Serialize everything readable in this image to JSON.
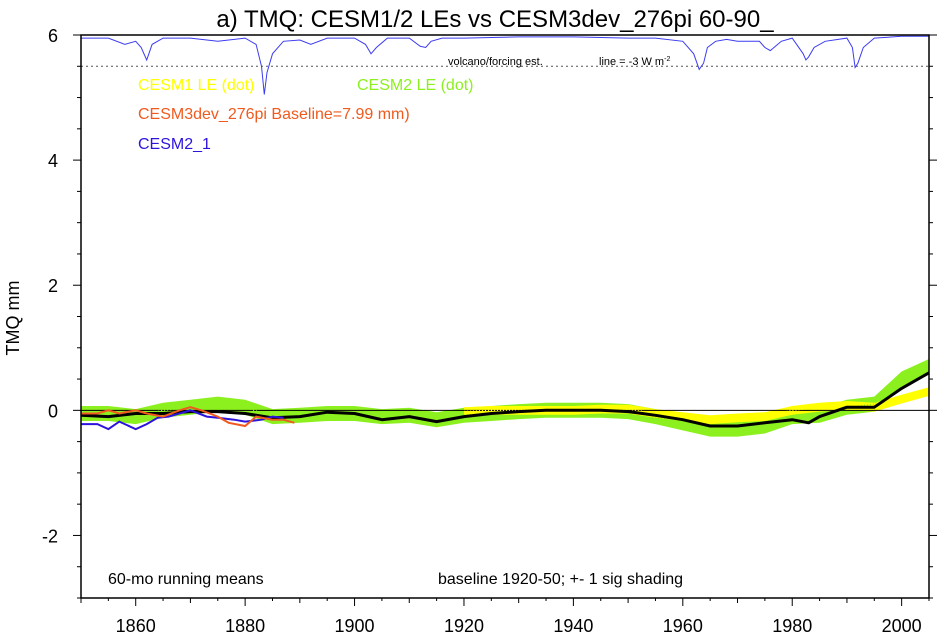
{
  "chart_data": {
    "type": "line",
    "title": "a) TMQ: CESM1/2 LEs vs CESM3dev_276pi 60-90_",
    "ylabel": "TMQ mm",
    "xlim": [
      1850,
      2005
    ],
    "ylim": [
      -3,
      6
    ],
    "x_ticks": [
      1860,
      1880,
      1900,
      1920,
      1940,
      1960,
      1980,
      2000
    ],
    "y_ticks": [
      -2,
      0,
      2,
      4,
      6
    ],
    "grid": false,
    "legend": {
      "cesm1_le": "CESM1 LE (dot)",
      "cesm2_le": "CESM2 LE (dot)",
      "cesm3": "CESM3dev_276pi Baseline=7.99 mm)",
      "cesm2_1": "CESM2_1"
    },
    "annotations": {
      "volcano": "volcano/forcing est.",
      "line_label": "line = -3 W m",
      "line_sup": "-2",
      "running_means": "60-mo running means",
      "baseline_note": "baseline 1920-50; +- 1 sig shading"
    },
    "colors": {
      "cesm1": "#ffff00",
      "cesm2": "#8cf01e",
      "cesm3": "#f05a1e",
      "cesm2_1": "#2d14dc",
      "mean": "#000000",
      "volcano": "#3c3cf0"
    },
    "volcano_reference_y": 5.5,
    "volcano_forcing": {
      "name": "volcano/forcing est.",
      "x": [
        1850,
        1855,
        1858,
        1860,
        1861,
        1862,
        1863,
        1865,
        1868,
        1870,
        1875,
        1880,
        1882,
        1883,
        1883.5,
        1884,
        1885,
        1887,
        1890,
        1892,
        1895,
        1900,
        1902,
        1903,
        1904,
        1906,
        1910,
        1912,
        1913,
        1914,
        1916,
        1920,
        1930,
        1940,
        1950,
        1955,
        1960,
        1962,
        1963,
        1963.8,
        1964.5,
        1966,
        1968,
        1970,
        1974,
        1975,
        1976,
        1978,
        1980,
        1982,
        1982.5,
        1983,
        1984,
        1986,
        1990,
        1991,
        1991.5,
        1992,
        1993,
        1995,
        2000,
        2005
      ],
      "y": [
        5.95,
        5.95,
        5.85,
        5.9,
        5.8,
        5.6,
        5.85,
        5.95,
        5.95,
        5.95,
        5.9,
        5.95,
        5.85,
        5.5,
        5.05,
        5.4,
        5.7,
        5.9,
        5.92,
        5.85,
        5.95,
        5.95,
        5.85,
        5.7,
        5.8,
        5.95,
        5.95,
        5.82,
        5.8,
        5.9,
        5.95,
        5.95,
        5.97,
        5.97,
        5.95,
        5.95,
        5.9,
        5.7,
        5.45,
        5.55,
        5.8,
        5.9,
        5.93,
        5.9,
        5.9,
        5.8,
        5.75,
        5.9,
        5.95,
        5.7,
        5.6,
        5.65,
        5.8,
        5.9,
        5.95,
        5.8,
        5.48,
        5.55,
        5.8,
        5.95,
        5.98,
        5.98
      ]
    },
    "series": [
      {
        "name": "CESM2 LE (dot)",
        "x": [
          1850,
          1855,
          1860,
          1865,
          1870,
          1875,
          1880,
          1885,
          1890,
          1895,
          1900,
          1905,
          1910,
          1915,
          1920,
          1925,
          1930,
          1935,
          1940,
          1945,
          1950,
          1955,
          1960,
          1965,
          1970,
          1975,
          1980,
          1985,
          1990,
          1995,
          2000,
          2005
        ],
        "y": [
          -0.05,
          -0.05,
          -0.1,
          0.0,
          0.05,
          0.1,
          0.05,
          -0.1,
          -0.08,
          -0.05,
          -0.05,
          -0.1,
          -0.08,
          -0.15,
          -0.08,
          -0.05,
          -0.02,
          0.0,
          0.0,
          0.0,
          -0.02,
          -0.1,
          -0.2,
          -0.3,
          -0.3,
          -0.25,
          -0.1,
          -0.08,
          0.05,
          0.1,
          0.5,
          0.7
        ],
        "sigma": 0.12
      },
      {
        "name": "CESM1 LE (dot)",
        "x": [
          1920,
          1925,
          1930,
          1935,
          1940,
          1945,
          1950,
          1955,
          1960,
          1965,
          1970,
          1975,
          1980,
          1985,
          1990,
          1995,
          2000,
          2005
        ],
        "y": [
          -0.02,
          0.0,
          0.0,
          0.0,
          0.0,
          0.02,
          0.02,
          -0.05,
          -0.1,
          -0.15,
          -0.12,
          -0.1,
          0.0,
          0.05,
          0.08,
          0.05,
          0.18,
          0.3
        ],
        "sigma": 0.07
      },
      {
        "name": "CESM3dev_276pi Baseline=7.99 mm)",
        "x": [
          1850,
          1853,
          1855,
          1857,
          1860,
          1862,
          1865,
          1868,
          1870,
          1872,
          1875,
          1877,
          1880,
          1882,
          1885,
          1887,
          1889
        ],
        "y": [
          -0.05,
          -0.05,
          0.0,
          -0.05,
          0.0,
          -0.05,
          -0.1,
          0.0,
          0.05,
          0.0,
          -0.1,
          -0.2,
          -0.25,
          -0.1,
          -0.15,
          -0.15,
          -0.2
        ]
      },
      {
        "name": "CESM2_1",
        "x": [
          1850,
          1853,
          1855,
          1857,
          1860,
          1862,
          1864,
          1866,
          1868,
          1870,
          1873,
          1875,
          1878,
          1880,
          1883,
          1885,
          1887
        ],
        "y": [
          -0.22,
          -0.22,
          -0.3,
          -0.18,
          -0.3,
          -0.22,
          -0.12,
          -0.1,
          -0.05,
          0.0,
          -0.1,
          -0.12,
          -0.15,
          -0.18,
          -0.15,
          -0.1,
          -0.12
        ]
      },
      {
        "name": "",
        "x": [
          1850,
          1855,
          1860,
          1865,
          1870,
          1875,
          1880,
          1885,
          1890,
          1895,
          1900,
          1905,
          1910,
          1915,
          1920,
          1925,
          1930,
          1935,
          1940,
          1945,
          1950,
          1955,
          1960,
          1965,
          1970,
          1975,
          1980,
          1983,
          1985,
          1990,
          1995,
          2000,
          2005
        ],
        "y": [
          -0.08,
          -0.1,
          -0.05,
          -0.05,
          -0.02,
          -0.02,
          -0.05,
          -0.12,
          -0.1,
          -0.03,
          -0.05,
          -0.15,
          -0.1,
          -0.18,
          -0.1,
          -0.05,
          -0.02,
          0.0,
          0.0,
          0.0,
          -0.02,
          -0.08,
          -0.15,
          -0.25,
          -0.25,
          -0.2,
          -0.15,
          -0.2,
          -0.1,
          0.05,
          0.05,
          0.35,
          0.6
        ]
      }
    ]
  }
}
